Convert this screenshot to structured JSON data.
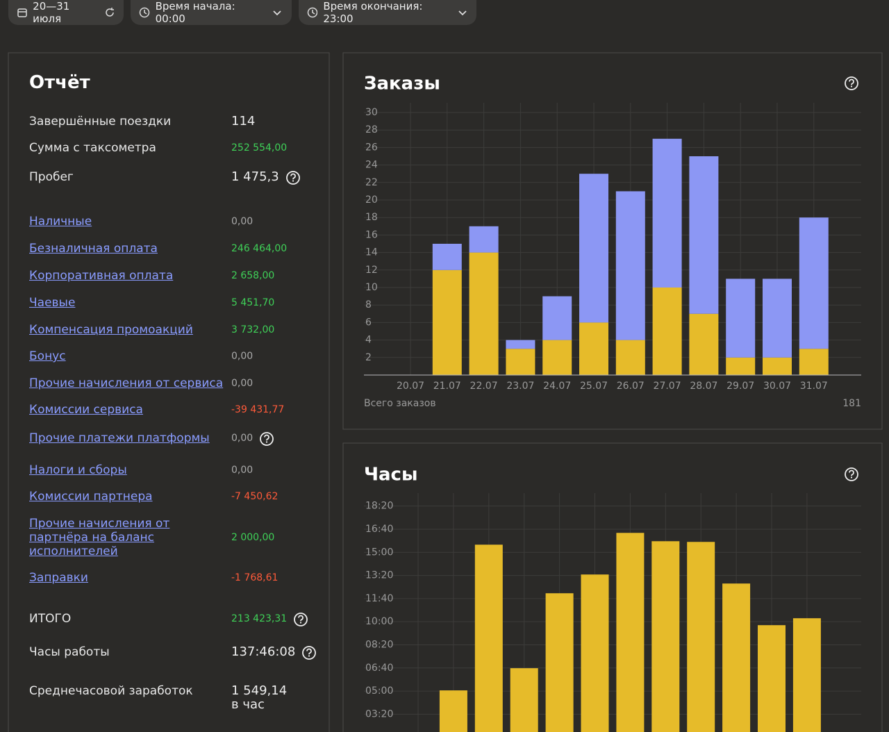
{
  "filters": {
    "date_range": "20—31 июля",
    "start_time": "Время начала: 00:00",
    "end_time": "Время окончания: 23:00"
  },
  "report": {
    "title": "Отчёт",
    "rows": [
      {
        "label": "Завершённые поездки",
        "value": "114",
        "kind": "text",
        "tone": "plain",
        "help": false
      },
      {
        "label": "Сумма с таксометра",
        "value": "252 554,00",
        "kind": "text",
        "tone": "green",
        "help": false
      },
      {
        "label": "Пробег",
        "value": "1 475,3",
        "kind": "text",
        "tone": "plain",
        "help": true
      },
      {
        "label": "Наличные",
        "value": "0,00",
        "kind": "link",
        "tone": "muted",
        "help": false
      },
      {
        "label": "Безналичная оплата",
        "value": "246 464,00",
        "kind": "link",
        "tone": "green",
        "help": false
      },
      {
        "label": "Корпоративная оплата",
        "value": "2 658,00",
        "kind": "link",
        "tone": "green",
        "help": false
      },
      {
        "label": "Чаевые",
        "value": "5 451,70",
        "kind": "link",
        "tone": "green",
        "help": false
      },
      {
        "label": "Компенсация промоакций",
        "value": "3 732,00",
        "kind": "link",
        "tone": "green",
        "help": false
      },
      {
        "label": "Бонус",
        "value": "0,00",
        "kind": "link",
        "tone": "muted",
        "help": false
      },
      {
        "label": "Прочие начисления от сервиса",
        "value": "0,00",
        "kind": "link",
        "tone": "muted",
        "help": false
      },
      {
        "label": "Комиссии сервиса",
        "value": "-39 431,77",
        "kind": "link",
        "tone": "red",
        "help": false
      },
      {
        "label": "Прочие платежи платформы",
        "value": "0,00",
        "kind": "link",
        "tone": "muted",
        "help": true
      },
      {
        "label": "Налоги и сборы",
        "value": "0,00",
        "kind": "link",
        "tone": "muted",
        "help": false
      },
      {
        "label": "Комиссии партнера",
        "value": "-7 450,62",
        "kind": "link",
        "tone": "red",
        "help": false
      },
      {
        "label": "Прочие начисления от партнёра на баланс исполнителей",
        "value": "2 000,00",
        "kind": "link",
        "tone": "green",
        "help": false
      },
      {
        "label": "Заправки",
        "value": "-1 768,61",
        "kind": "link",
        "tone": "red",
        "help": false
      },
      {
        "label": "ИТОГО",
        "value": "213 423,31",
        "kind": "text",
        "tone": "green",
        "help": true
      },
      {
        "label": "Часы работы",
        "value": "137:46:08",
        "kind": "text",
        "tone": "plain",
        "help": true
      },
      {
        "label": "Среднечасовой заработок",
        "value": "1 549,14 в час",
        "kind": "text",
        "tone": "plain",
        "help": false
      }
    ]
  },
  "chart_data": [
    {
      "type": "stacked_bar",
      "title": "Заказы",
      "categories": [
        "20.07",
        "21.07",
        "22.07",
        "23.07",
        "24.07",
        "25.07",
        "26.07",
        "27.07",
        "28.07",
        "29.07",
        "30.07",
        "31.07"
      ],
      "series": [
        {
          "color": "#e6bb2a",
          "values": [
            0,
            12,
            14,
            3,
            4,
            6,
            4,
            10,
            7,
            2,
            2,
            3
          ]
        },
        {
          "color": "#8c97f4",
          "values": [
            0,
            3,
            3,
            1,
            5,
            17,
            17,
            17,
            18,
            9,
            9,
            15
          ]
        }
      ],
      "ylim": [
        0,
        30
      ],
      "yticks": [
        2,
        4,
        6,
        8,
        10,
        12,
        14,
        16,
        18,
        20,
        22,
        24,
        26,
        28,
        30
      ],
      "grid": true,
      "footer_label": "Всего заказов",
      "footer_value": 181
    },
    {
      "type": "bar",
      "title": "Часы",
      "categories": [
        null,
        null,
        null,
        null,
        null,
        null,
        null,
        null,
        null,
        null,
        null,
        null
      ],
      "color": "#e6bb2a",
      "values": [
        0,
        303,
        933,
        399,
        723,
        804,
        984,
        948,
        945,
        765,
        585,
        615
      ],
      "ylim": [
        0,
        1150
      ],
      "yticks": [
        {
          "value": 200,
          "label": "03:20"
        },
        {
          "value": 300,
          "label": "05:00"
        },
        {
          "value": 400,
          "label": "06:40"
        },
        {
          "value": 500,
          "label": "08:20"
        },
        {
          "value": 600,
          "label": "10:00"
        },
        {
          "value": 700,
          "label": "11:40"
        },
        {
          "value": 800,
          "label": "13:20"
        },
        {
          "value": 900,
          "label": "15:00"
        },
        {
          "value": 1000,
          "label": "16:40"
        },
        {
          "value": 1100,
          "label": "18:20"
        }
      ],
      "grid": true
    }
  ]
}
